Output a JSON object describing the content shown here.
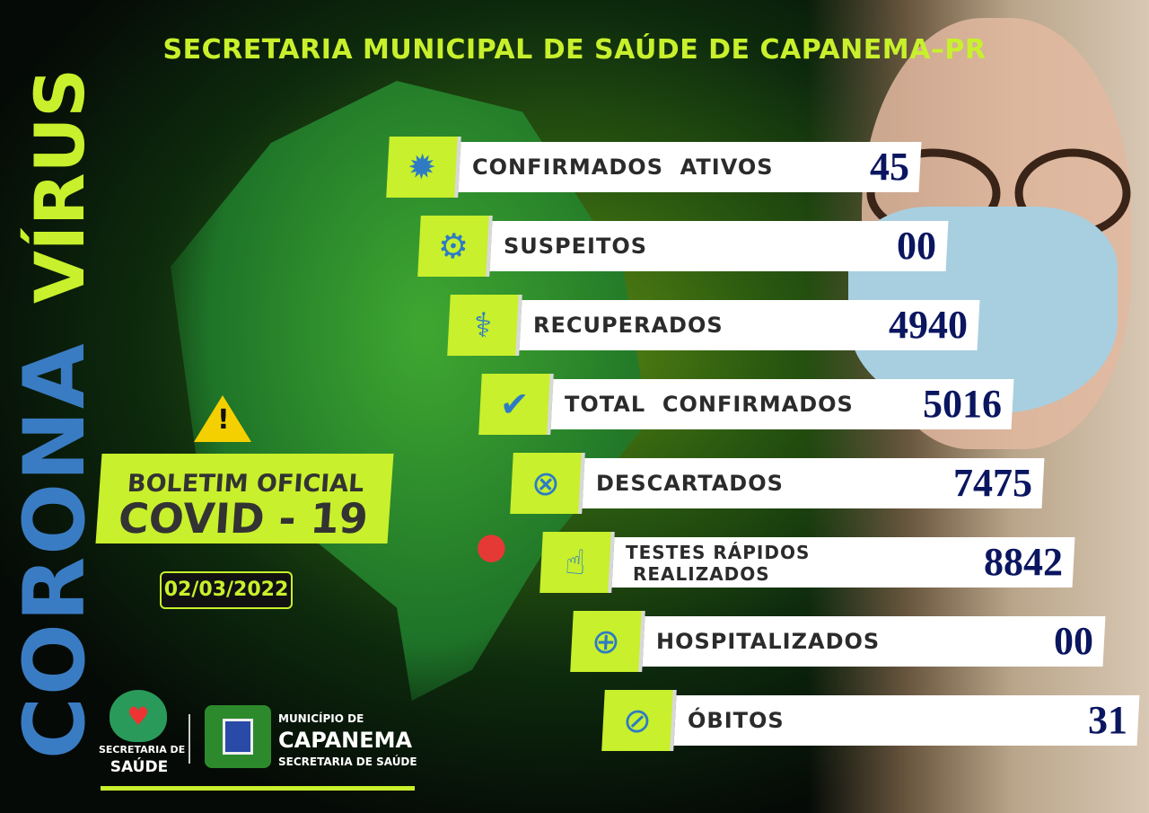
{
  "header": {
    "title": "SECRETARIA MUNICIPAL DE SAÚDE DE CAPANEMA–PR"
  },
  "side": {
    "corona": "CORONA",
    "virus": "VÍRUS"
  },
  "bulletin": {
    "line1": "BOLETIM OFICIAL",
    "line2": "COVID - 19",
    "date": "02/03/2022",
    "warning_icon": "!"
  },
  "stats": [
    {
      "label": "CONFIRMADOS  ATIVOS",
      "value": "45",
      "icon": "virus-icon"
    },
    {
      "label": "SUSPEITOS",
      "value": "00",
      "icon": "gear-search-icon"
    },
    {
      "label": "RECUPERADOS",
      "value": "4940",
      "icon": "stethoscope-icon"
    },
    {
      "label": "TOTAL  CONFIRMADOS",
      "value": "5016",
      "icon": "check-circle-icon"
    },
    {
      "label": "DESCARTADOS",
      "value": "7475",
      "icon": "x-circle-icon"
    },
    {
      "label": "TESTES RÁPIDOS",
      "label2": "REALIZADOS",
      "value": "8842",
      "icon": "blood-test-icon"
    },
    {
      "label": "HOSPITALIZADOS",
      "value": "00",
      "icon": "hospital-pin-icon"
    },
    {
      "label": "ÓBITOS",
      "value": "31",
      "icon": "prohibited-icon"
    }
  ],
  "footer": {
    "saude_1": "SECRETARIA DE",
    "saude_2": "SAÚDE",
    "mun_1": "MUNICÍPIO DE",
    "mun_2": "CAPANEMA",
    "mun_3": "SECRETARIA DE SAÚDE"
  },
  "colors": {
    "accent": "#c8f02c",
    "blue": "#2e7bc4",
    "number": "#0b1660"
  }
}
